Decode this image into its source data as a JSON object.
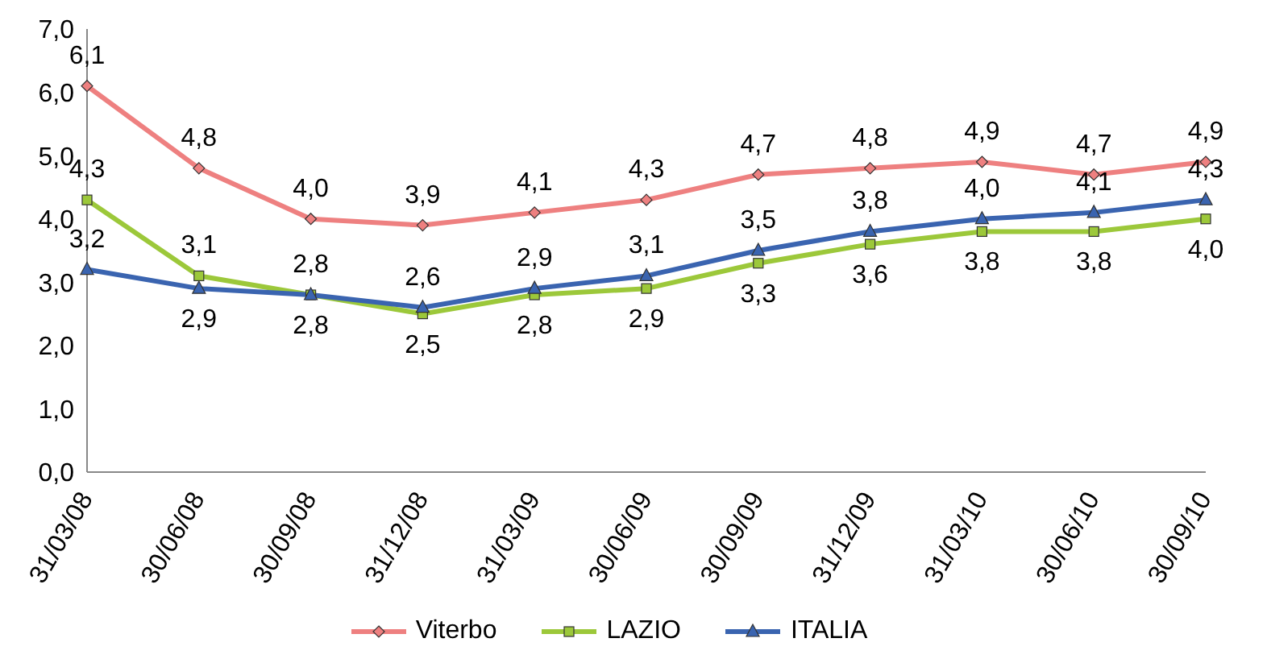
{
  "chart_data": {
    "type": "line",
    "categories": [
      "31/03/08",
      "30/06/08",
      "30/09/08",
      "31/12/08",
      "31/03/09",
      "30/06/09",
      "30/09/09",
      "31/12/09",
      "31/03/10",
      "30/06/10",
      "30/09/10"
    ],
    "series": [
      {
        "name": "Viterbo",
        "color": "#ee8080",
        "marker": "diamond",
        "values": [
          6.1,
          4.8,
          4.0,
          3.9,
          4.1,
          4.3,
          4.7,
          4.8,
          4.9,
          4.7,
          4.9
        ],
        "value_labels": [
          "6,1",
          "4,8",
          "4,0",
          "3,9",
          "4,1",
          "4,3",
          "4,7",
          "4,8",
          "4,9",
          "4,7",
          "4,9"
        ]
      },
      {
        "name": "LAZIO",
        "color": "#9cc83a",
        "marker": "square",
        "values": [
          4.3,
          3.1,
          2.8,
          2.5,
          2.8,
          2.9,
          3.3,
          3.6,
          3.8,
          3.8,
          4.0
        ],
        "value_labels": [
          "4,3",
          "3,1",
          "2,8",
          "2,5",
          "2,8",
          "2,9",
          "3,3",
          "3,6",
          "3,8",
          "3,8",
          "4,0"
        ]
      },
      {
        "name": "ITALIA",
        "color": "#3a64b0",
        "marker": "triangle",
        "values": [
          3.2,
          2.9,
          2.8,
          2.6,
          2.9,
          3.1,
          3.5,
          3.8,
          4.0,
          4.1,
          4.3
        ],
        "value_labels": [
          "3,2",
          "2,9",
          "2,8",
          "2,6",
          "2,9",
          "3,1",
          "3,5",
          "3,8",
          "4,0",
          "4,1",
          "4,3"
        ]
      }
    ],
    "ylim": [
      0,
      7
    ],
    "yticks": [
      {
        "value": 0,
        "label": "0,0"
      },
      {
        "value": 1,
        "label": "1,0"
      },
      {
        "value": 2,
        "label": "2,0"
      },
      {
        "value": 3,
        "label": "3,0"
      },
      {
        "value": 4,
        "label": "4,0"
      },
      {
        "value": 5,
        "label": "5,0"
      },
      {
        "value": 6,
        "label": "6,0"
      },
      {
        "value": 7,
        "label": "7,0"
      }
    ],
    "legend": "bottom",
    "line_style": "solid"
  }
}
